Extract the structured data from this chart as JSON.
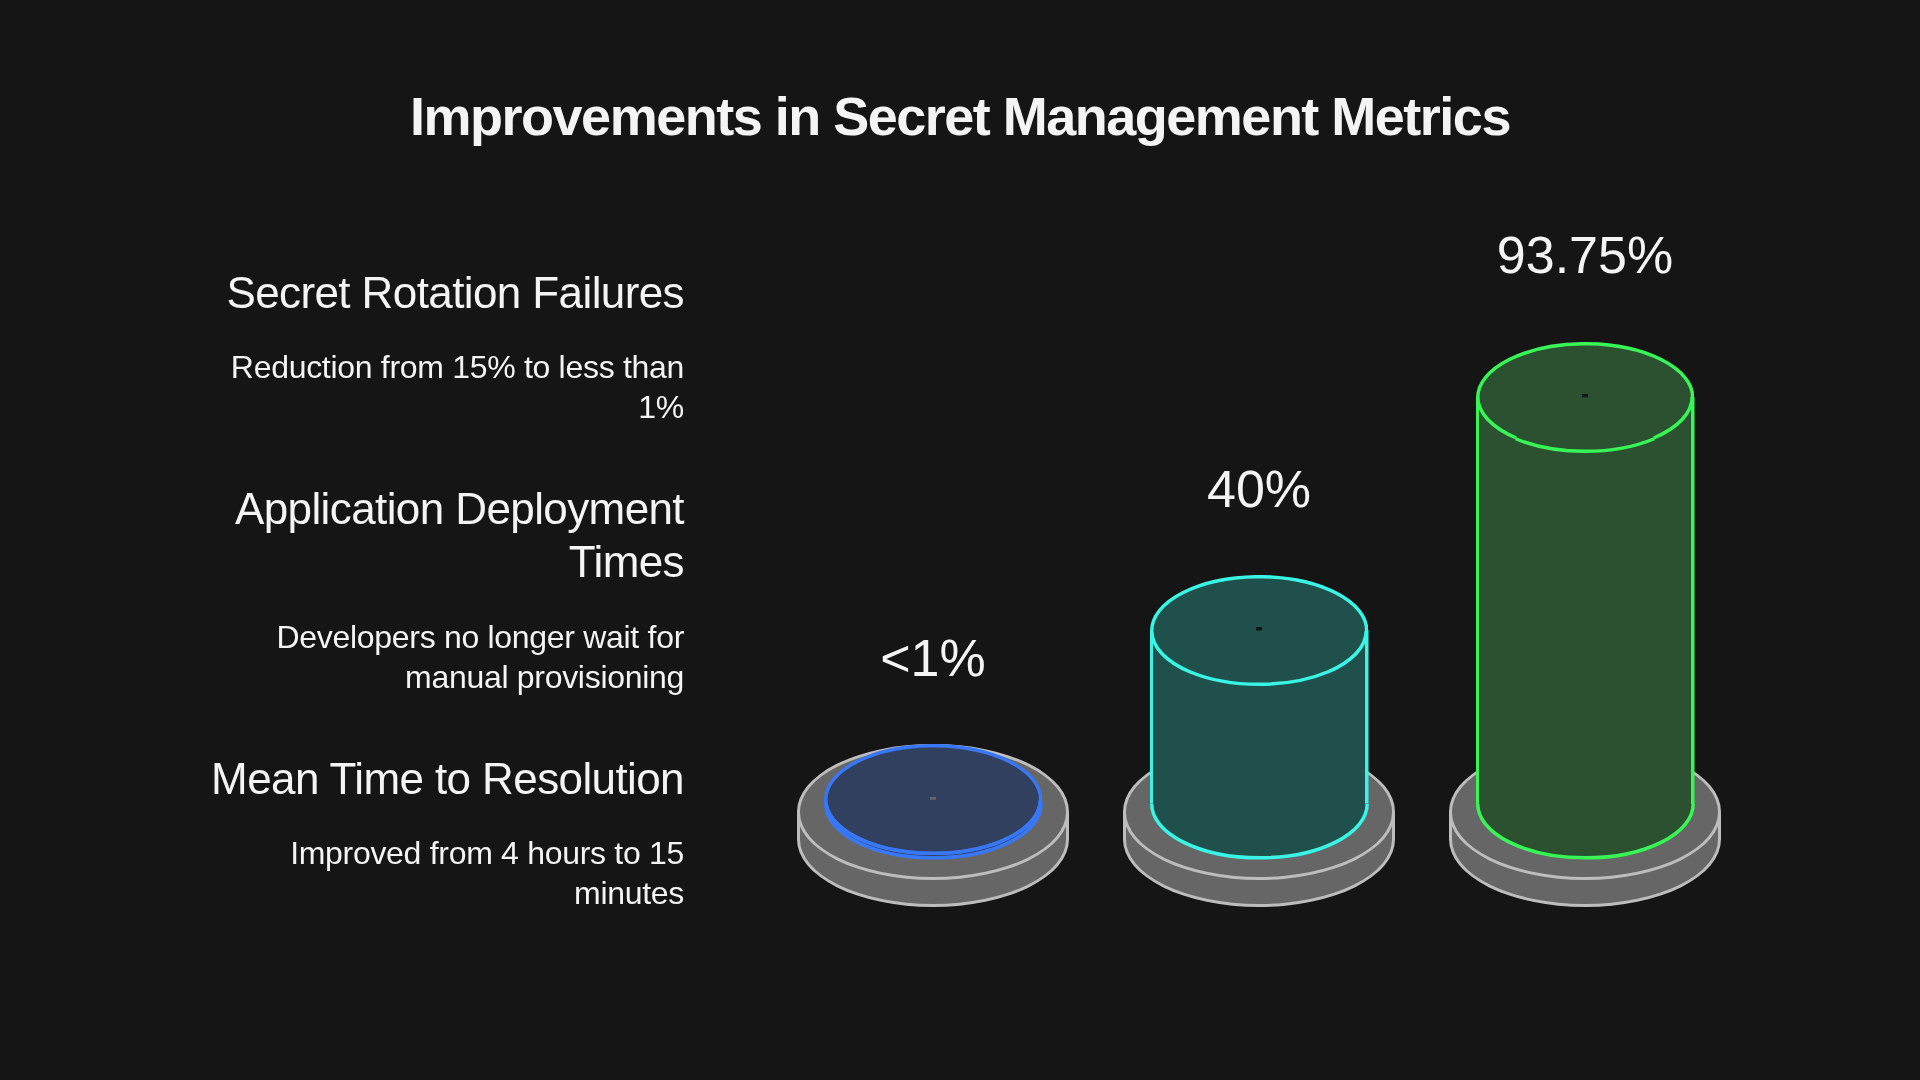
{
  "chart_data": {
    "type": "bar",
    "title": "Improvements in Secret Management Metrics",
    "categories": [
      null,
      null,
      null
    ],
    "values": [
      1,
      40,
      93.75
    ],
    "colors": [
      "#31405e",
      "#20504c",
      "#2b5131"
    ],
    "value_labels": [
      "<1%",
      "40%",
      "93.75%"
    ],
    "annotations": [
      "Secret Rotation Failures",
      "Reduction from 15% to less than 1%",
      "Application Deployment Times",
      "Developers no longer wait for manual provisioning",
      "Mean Time to Resolution",
      "Improved from 4 hours to 15 minutes"
    ]
  }
}
